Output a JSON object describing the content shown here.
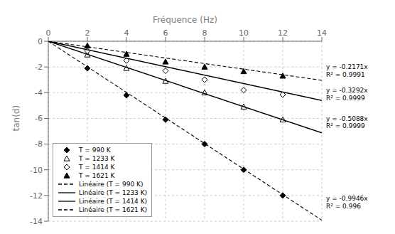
{
  "chart_data": {
    "type": "scatter",
    "xlabel": "Fréquence (Hz)",
    "ylabel": "tan(d)",
    "xlim": [
      0,
      14
    ],
    "ylim": [
      -14,
      0
    ],
    "xticks": [
      0,
      2,
      4,
      6,
      8,
      10,
      12,
      14
    ],
    "yticks": [
      0,
      -2,
      -4,
      -6,
      -8,
      -10,
      -12,
      -14
    ],
    "grid": true,
    "legend": "lower left",
    "series": [
      {
        "name": "T = 990 K",
        "type": "scatter",
        "marker": "diamond",
        "color": "#000000",
        "x": [
          2,
          4,
          6,
          8,
          10,
          12
        ],
        "values": [
          -2.1,
          -4.2,
          -6.1,
          -8.0,
          -10.0,
          -12.0
        ]
      },
      {
        "name": "T = 1233 K",
        "type": "scatter",
        "marker": "open-triangle",
        "color": "#000000",
        "x": [
          2,
          4,
          6,
          8,
          10,
          12
        ],
        "values": [
          -1.05,
          -2.1,
          -3.1,
          -4.0,
          -5.1,
          -6.1
        ]
      },
      {
        "name": "T = 1414 K",
        "type": "scatter",
        "marker": "open-diamond",
        "color": "#000000",
        "x": [
          2,
          4,
          6,
          8,
          10,
          12
        ],
        "values": [
          -0.75,
          -1.5,
          -2.3,
          -3.0,
          -3.8,
          -4.15
        ]
      },
      {
        "name": "T = 1621 K",
        "type": "scatter",
        "marker": "triangle",
        "color": "#000000",
        "x": [
          2,
          4,
          6,
          8,
          10,
          12
        ],
        "values": [
          -0.35,
          -1.0,
          -1.6,
          -2.0,
          -2.35,
          -2.7
        ]
      },
      {
        "name": "Linéaire (T = 990 K)",
        "type": "line",
        "line_style": "dashed",
        "color": "#000000",
        "x": [
          0,
          14
        ],
        "values": [
          0,
          -13.9244
        ]
      },
      {
        "name": "Linéaire (T = 1233 K)",
        "type": "line",
        "line_style": "solid",
        "color": "#000000",
        "x": [
          0,
          14
        ],
        "values": [
          0,
          -7.1232
        ]
      },
      {
        "name": "Linéaire (T = 1414 K)",
        "type": "line",
        "line_style": "solid",
        "color": "#000000",
        "x": [
          0,
          14
        ],
        "values": [
          0,
          -4.6088
        ]
      },
      {
        "name": "Linéaire (T = 1621 K)",
        "type": "line",
        "line_style": "dashed",
        "color": "#000000",
        "x": [
          0,
          14
        ],
        "values": [
          0,
          -3.0394
        ]
      }
    ],
    "annotations": [
      {
        "text": "y = -0.2171x",
        "y": -2.0
      },
      {
        "text": "R² = 0.9991",
        "y": -2.6
      },
      {
        "text": "y = -0.3292x",
        "y": -3.8
      },
      {
        "text": "R² = 0.9999",
        "y": -4.4
      },
      {
        "text": "y = -0.5088x",
        "y": -6.0
      },
      {
        "text": "R² = 0.9999",
        "y": -6.6
      },
      {
        "text": "y = -0.9946x",
        "y": -12.2
      },
      {
        "text": "R² = 0.996",
        "y": -12.8
      }
    ]
  }
}
